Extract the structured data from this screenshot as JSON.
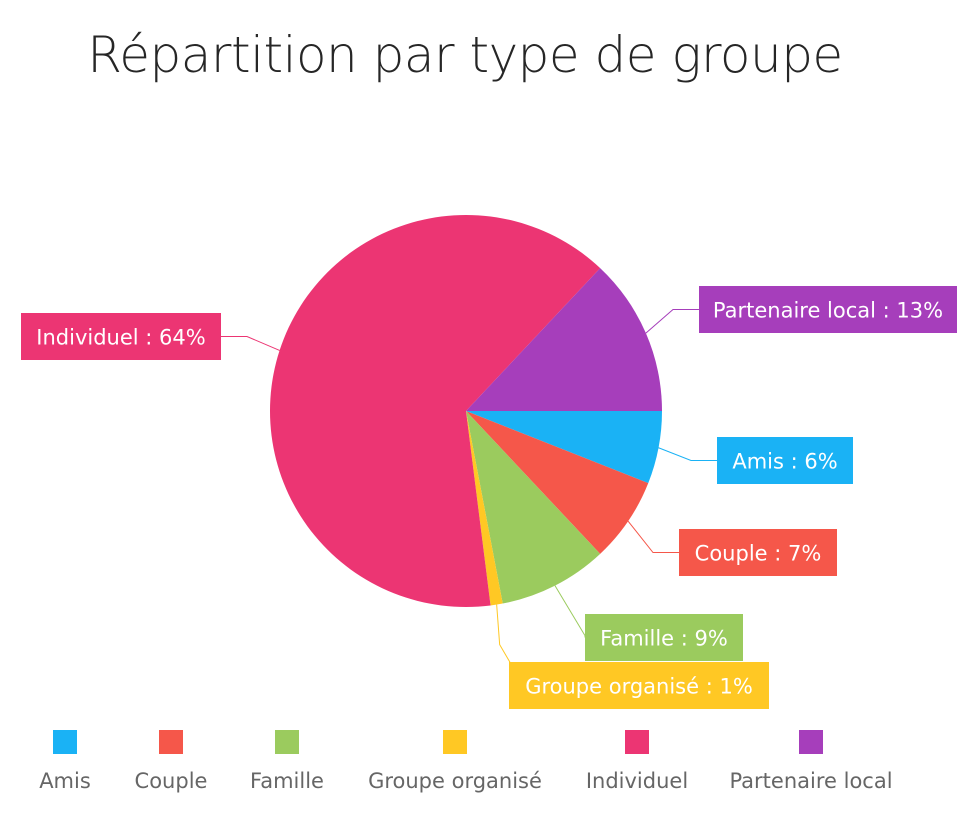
{
  "chart_data": {
    "type": "pie",
    "title": "Répartition par type de groupe",
    "start_angle_deg": 0,
    "direction": "clockwise",
    "slices": [
      {
        "name": "Amis",
        "value": 6,
        "label": "Amis : 6%",
        "color": "#1AB2F5"
      },
      {
        "name": "Couple",
        "value": 7,
        "label": "Couple : 7%",
        "color": "#F5574A"
      },
      {
        "name": "Famille",
        "value": 9,
        "label": "Famille : 9%",
        "color": "#9BCB5E"
      },
      {
        "name": "Groupe organisé",
        "value": 1,
        "label": "Groupe organisé : 1%",
        "color": "#FFC824"
      },
      {
        "name": "Individuel",
        "value": 64,
        "label": "Individuel : 64%",
        "color": "#EC3573"
      },
      {
        "name": "Partenaire local",
        "value": 13,
        "label": "Partenaire local : 13%",
        "color": "#A63EBB"
      }
    ],
    "legend": {
      "position": "bottom",
      "entries": [
        "Amis",
        "Couple",
        "Famille",
        "Groupe organisé",
        "Individuel",
        "Partenaire local"
      ]
    }
  }
}
